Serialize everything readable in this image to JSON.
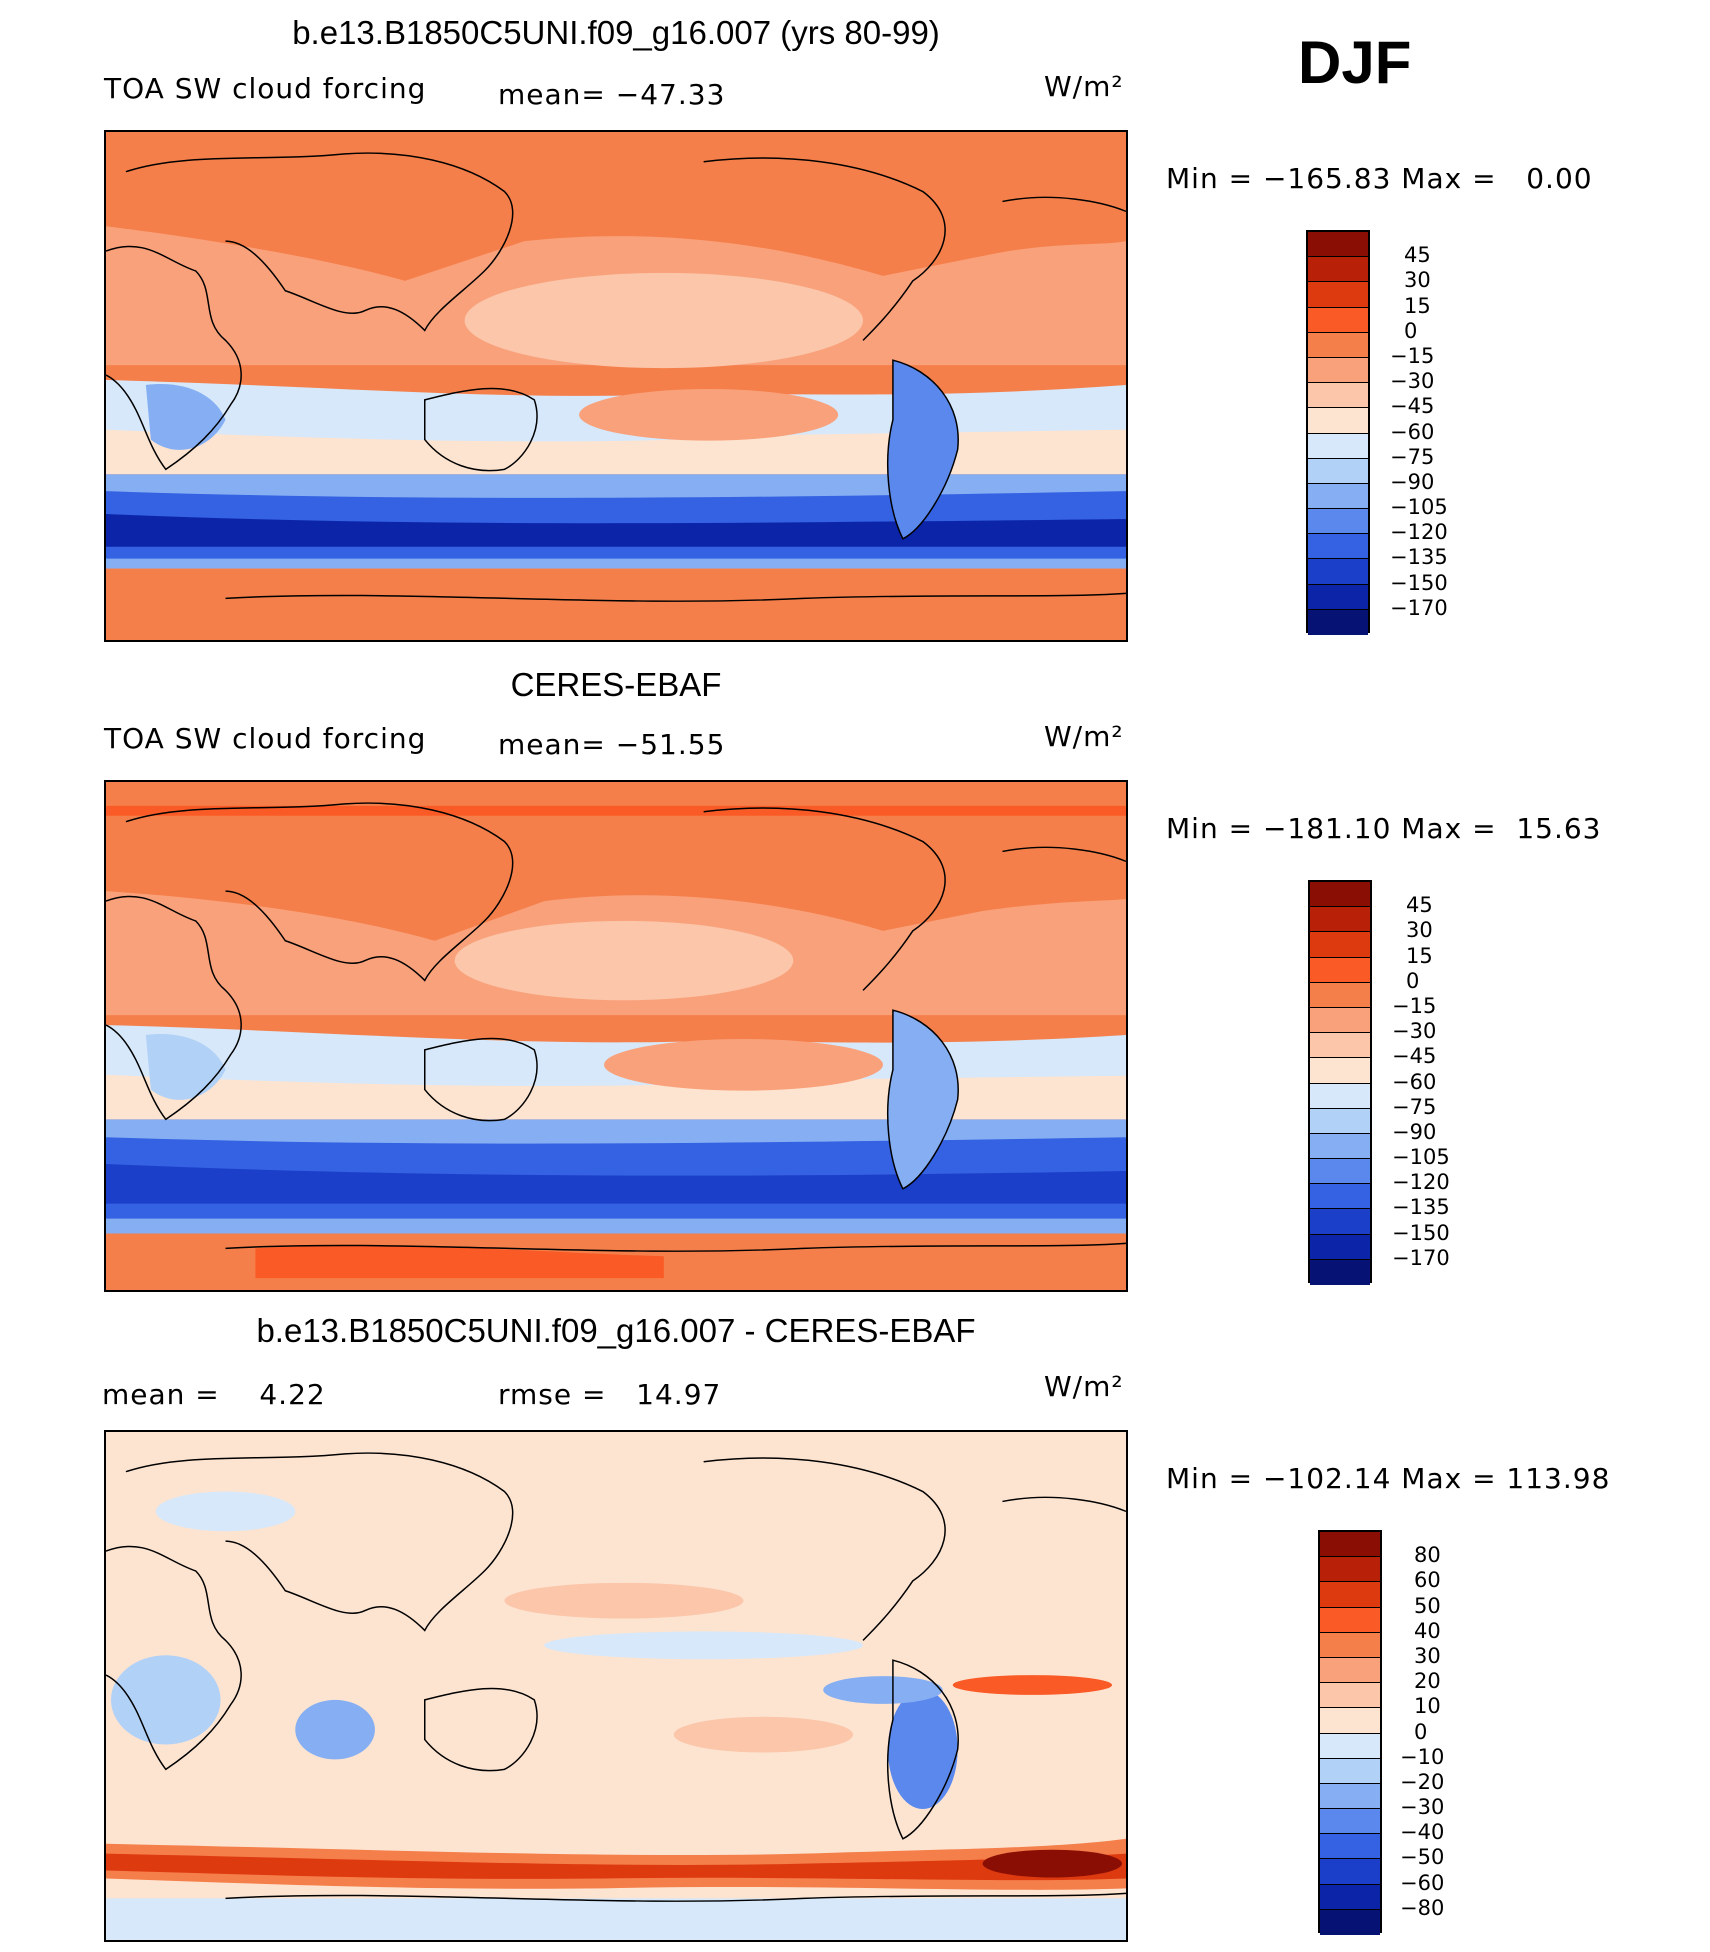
{
  "page": {
    "season": "DJF"
  },
  "chart_data": [
    {
      "type": "heatmap",
      "title": "b.e13.B1850C5UNI.f09_g16.007 (yrs 80-99)",
      "left_label": "TOA SW cloud forcing",
      "mean_label": "mean= −47.33",
      "units": "W/m²",
      "minmax": "Min = −165.83 Max =   0.00",
      "min": -165.83,
      "max": 0.0,
      "mean": -47.33,
      "colorbar": {
        "levels": [
          "45",
          "30",
          "15",
          "0",
          "−15",
          "−30",
          "−45",
          "−60",
          "−75",
          "−90",
          "−105",
          "−120",
          "−135",
          "−150",
          "−170"
        ],
        "colors": [
          "#8b0e04",
          "#b82007",
          "#de3a10",
          "#fa5a26",
          "#f57f4a",
          "#f9a17b",
          "#fbc6a9",
          "#fde4d1",
          "#d6e8fa",
          "#b2d1f7",
          "#86aff3",
          "#5a88ed",
          "#3462e2",
          "#1b3fc9",
          "#0c25a8",
          "#061375"
        ]
      }
    },
    {
      "type": "heatmap",
      "title": "CERES-EBAF",
      "left_label": "TOA SW cloud forcing",
      "mean_label": "mean= −51.55",
      "units": "W/m²",
      "minmax": "Min = −181.10 Max =  15.63",
      "min": -181.1,
      "max": 15.63,
      "mean": -51.55,
      "colorbar": {
        "levels": [
          "45",
          "30",
          "15",
          "0",
          "−15",
          "−30",
          "−45",
          "−60",
          "−75",
          "−90",
          "−105",
          "−120",
          "−135",
          "−150",
          "−170"
        ],
        "colors": [
          "#8b0e04",
          "#b82007",
          "#de3a10",
          "#fa5a26",
          "#f57f4a",
          "#f9a17b",
          "#fbc6a9",
          "#fde4d1",
          "#d6e8fa",
          "#b2d1f7",
          "#86aff3",
          "#5a88ed",
          "#3462e2",
          "#1b3fc9",
          "#0c25a8",
          "#061375"
        ]
      }
    },
    {
      "type": "heatmap",
      "title": "b.e13.B1850C5UNI.f09_g16.007 - CERES-EBAF",
      "left_label": "mean =    4.22",
      "mean_label": "rmse =   14.97",
      "units": "W/m²",
      "minmax": "Min = −102.14 Max = 113.98",
      "min": -102.14,
      "max": 113.98,
      "mean": 4.22,
      "rmse": 14.97,
      "colorbar": {
        "levels": [
          "80",
          "60",
          "50",
          "40",
          "30",
          "20",
          "10",
          "0",
          "−10",
          "−20",
          "−30",
          "−40",
          "−50",
          "−60",
          "−80"
        ],
        "colors": [
          "#8b0e04",
          "#b82007",
          "#de3a10",
          "#fa5a26",
          "#f57f4a",
          "#f9a17b",
          "#fbc6a9",
          "#fde4d1",
          "#d6e8fa",
          "#b2d1f7",
          "#86aff3",
          "#5a88ed",
          "#3462e2",
          "#1b3fc9",
          "#0c25a8",
          "#061375"
        ]
      }
    }
  ]
}
